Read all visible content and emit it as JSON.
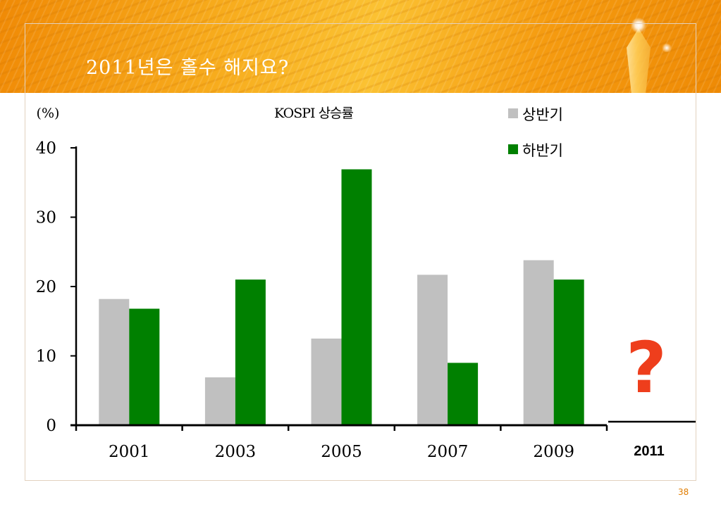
{
  "slide": {
    "title": "2011년은 홀수 해지요?",
    "page_number": "38"
  },
  "colors": {
    "first_half": "#c0c0c0",
    "second_half": "#008000",
    "question_mark": "#ee3e1c",
    "axis": "#000000"
  },
  "chart_data": {
    "type": "bar",
    "title": "KOSPI 상승률",
    "ylabel": "(%)",
    "xlabel": "",
    "categories": [
      "2001",
      "2003",
      "2005",
      "2007",
      "2009"
    ],
    "series": [
      {
        "name": "상반기",
        "values": [
          18.2,
          6.9,
          12.5,
          21.7,
          23.8
        ]
      },
      {
        "name": "하반기",
        "values": [
          16.8,
          21.0,
          36.9,
          9.0,
          21.0
        ]
      }
    ],
    "ylim": [
      0,
      40
    ],
    "yticks": [
      "0",
      "10",
      "20",
      "30",
      "40"
    ],
    "grid": false,
    "legend_placement": "top-right",
    "extra_category": {
      "label": "2011",
      "annotation": "?"
    }
  }
}
